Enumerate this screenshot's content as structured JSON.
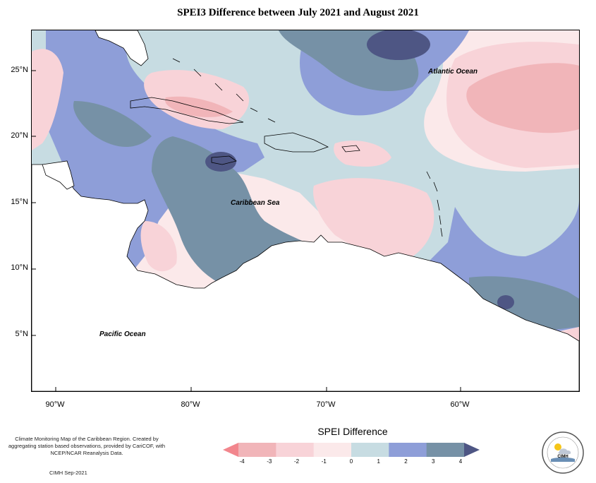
{
  "title": "SPEI3 Difference between July 2021 and August 2021",
  "ocean_labels": {
    "atlantic": "Atlantic Ocean",
    "caribbean": "Caribbean Sea",
    "pacific": "Pacific Ocean"
  },
  "lat_labels": [
    "25°N",
    "20°N",
    "15°N",
    "10°N",
    "5°N"
  ],
  "lon_labels": [
    "90°W",
    "80°W",
    "70°W",
    "60°W"
  ],
  "note": "Climate Monitoring Map of the Caribbean Region. Created by aggregating station based observations, provided by CariCOF, with NCEP/NCAR Reanalysis Data.",
  "credit": "CIMH Sep-2021",
  "legend": {
    "title": "SPEI Difference",
    "ticks": [
      "-4",
      "-3",
      "-2",
      "-1",
      "0",
      "1",
      "2",
      "3",
      "4"
    ],
    "colors": [
      "#f2868d",
      "#f1b5b9",
      "#f8d3d8",
      "#fbe9ea",
      "#c7dce2",
      "#8e9ed8",
      "#7691a6",
      "#4e5684"
    ]
  },
  "logo_text": "CIMH",
  "colors": {
    "bg_low": "#fbe9ea",
    "pink": "#f8d3d8",
    "salmon": "#f1b5b9",
    "light_blue": "#c7dce2",
    "periwinkle": "#8e9ed8",
    "slate": "#7691a6",
    "navy": "#4e5684"
  }
}
